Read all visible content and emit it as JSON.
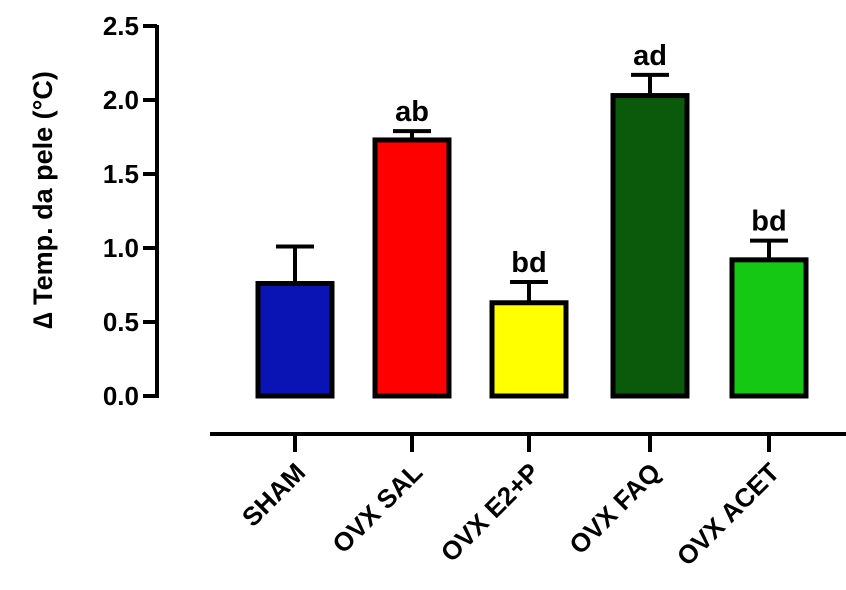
{
  "chart_data": {
    "type": "bar",
    "title": "",
    "xlabel": "",
    "ylabel": "∆ Temp. da pele (°C)",
    "ylim": [
      0,
      2.5
    ],
    "yticks": [
      "0.0",
      "0.5",
      "1.0",
      "1.5",
      "2.0",
      "2.5"
    ],
    "ytick_values": [
      0,
      0.5,
      1.0,
      1.5,
      2.0,
      2.5
    ],
    "categories": [
      "SHAM",
      "OVX  SAL",
      "OVX  E2+P",
      "OVX FAQ",
      "OVX ACET"
    ],
    "values": [
      0.76,
      1.73,
      0.63,
      2.03,
      0.92
    ],
    "errors": [
      0.25,
      0.06,
      0.14,
      0.14,
      0.13
    ],
    "annotations": [
      "",
      "ab",
      "bd",
      "ad",
      "bd"
    ],
    "colors": [
      "#0a14b4",
      "#ff0000",
      "#ffff00",
      "#0b5a0b",
      "#14c814"
    ],
    "grid": false
  }
}
